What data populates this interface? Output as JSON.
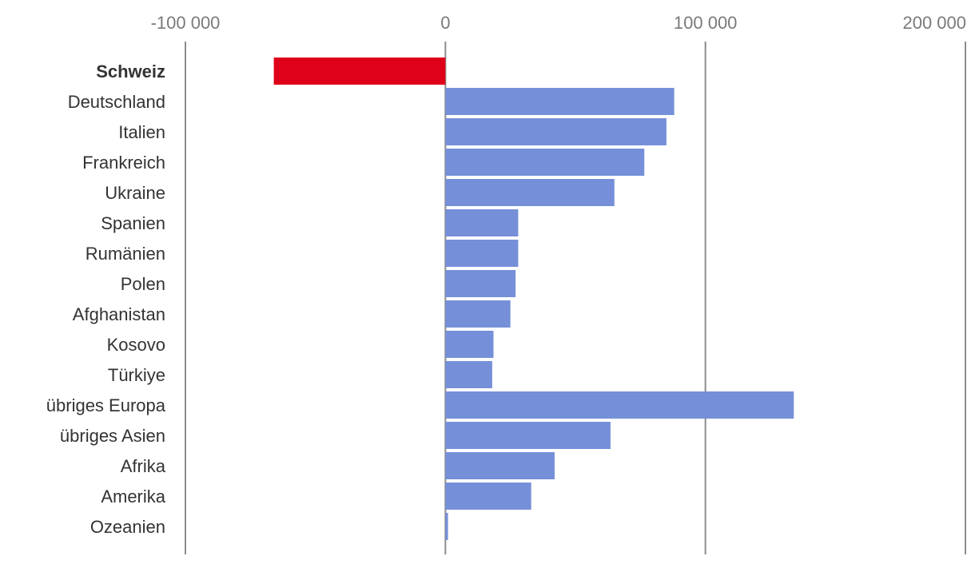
{
  "chart_data": {
    "type": "bar",
    "orientation": "horizontal",
    "title": "",
    "xlabel": "",
    "ylabel": "",
    "xlim": [
      -100000,
      200000
    ],
    "x_ticks": [
      -100000,
      0,
      100000,
      200000
    ],
    "x_tick_labels": [
      "-100 000",
      "0",
      "100 000",
      "200 000"
    ],
    "x_axis_position": "top",
    "grid": "vertical",
    "legend": "none",
    "categories": [
      "Schweiz",
      "Deutschland",
      "Italien",
      "Frankreich",
      "Ukraine",
      "Spanien",
      "Rumänien",
      "Polen",
      "Afghanistan",
      "Kosovo",
      "Türkiye",
      "übriges Europa",
      "übriges Asien",
      "Afrika",
      "Amerika",
      "Ozeanien"
    ],
    "values": [
      -66000,
      88000,
      85000,
      76500,
      65000,
      28000,
      28000,
      27000,
      25000,
      18500,
      18000,
      134000,
      63500,
      42000,
      33000,
      1000
    ],
    "highlight_category": "Schweiz",
    "colors": {
      "highlight": "#df0019",
      "default": "#7590d8",
      "gridline": "#8c8c8c",
      "tick_text": "#7a7a7a",
      "label_text": "#333333"
    }
  }
}
